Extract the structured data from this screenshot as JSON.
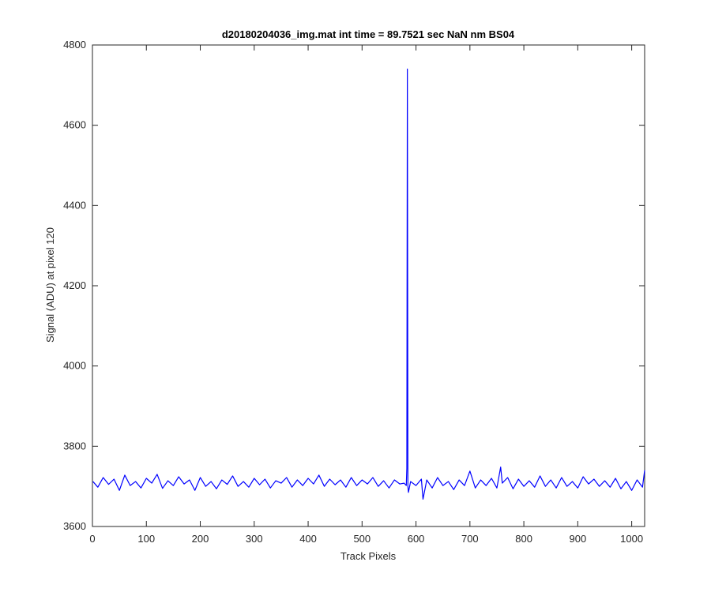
{
  "chart_data": {
    "type": "line",
    "title": "d20180204036_img.mat int time = 89.7521 sec  NaN nm BS04",
    "xlabel": "Track Pixels",
    "ylabel": "Signal (ADU) at pixel 120",
    "xlim": [
      0,
      1024
    ],
    "ylim": [
      3600,
      4800
    ],
    "xticks": [
      0,
      100,
      200,
      300,
      400,
      500,
      600,
      700,
      800,
      900,
      1000
    ],
    "yticks": [
      3600,
      3800,
      4000,
      4200,
      4400,
      4600,
      4800
    ],
    "grid": false,
    "series": [
      {
        "color": "#0000ff",
        "x": [
          1,
          10,
          20,
          30,
          40,
          50,
          60,
          70,
          80,
          90,
          100,
          110,
          120,
          130,
          140,
          150,
          160,
          170,
          180,
          190,
          200,
          210,
          220,
          230,
          240,
          250,
          260,
          270,
          280,
          290,
          300,
          310,
          320,
          330,
          340,
          350,
          360,
          370,
          380,
          390,
          400,
          410,
          420,
          430,
          440,
          450,
          460,
          470,
          480,
          490,
          500,
          510,
          520,
          530,
          540,
          550,
          560,
          570,
          578,
          582,
          583,
          584,
          585,
          586,
          590,
          600,
          610,
          613,
          620,
          630,
          640,
          650,
          660,
          670,
          680,
          690,
          700,
          710,
          720,
          730,
          740,
          750,
          757,
          760,
          770,
          780,
          790,
          800,
          810,
          820,
          830,
          840,
          850,
          860,
          870,
          880,
          890,
          900,
          910,
          920,
          930,
          940,
          950,
          960,
          970,
          980,
          990,
          1000,
          1010,
          1020,
          1024
        ],
        "values": [
          3712,
          3698,
          3722,
          3705,
          3718,
          3690,
          3728,
          3702,
          3712,
          3696,
          3720,
          3708,
          3730,
          3695,
          3714,
          3702,
          3724,
          3706,
          3716,
          3690,
          3722,
          3700,
          3712,
          3694,
          3716,
          3705,
          3726,
          3700,
          3712,
          3698,
          3720,
          3704,
          3718,
          3696,
          3714,
          3708,
          3722,
          3698,
          3716,
          3702,
          3720,
          3706,
          3728,
          3700,
          3718,
          3704,
          3716,
          3698,
          3722,
          3702,
          3716,
          3706,
          3722,
          3700,
          3714,
          3696,
          3716,
          3706,
          3708,
          3702,
          3745,
          4740,
          3700,
          3685,
          3712,
          3702,
          3718,
          3668,
          3716,
          3696,
          3722,
          3702,
          3712,
          3692,
          3716,
          3702,
          3738,
          3696,
          3716,
          3702,
          3720,
          3696,
          3748,
          3708,
          3722,
          3694,
          3718,
          3700,
          3714,
          3698,
          3726,
          3700,
          3716,
          3696,
          3722,
          3700,
          3712,
          3696,
          3724,
          3706,
          3718,
          3700,
          3714,
          3698,
          3720,
          3694,
          3712,
          3690,
          3716,
          3698,
          3740
        ]
      }
    ]
  }
}
